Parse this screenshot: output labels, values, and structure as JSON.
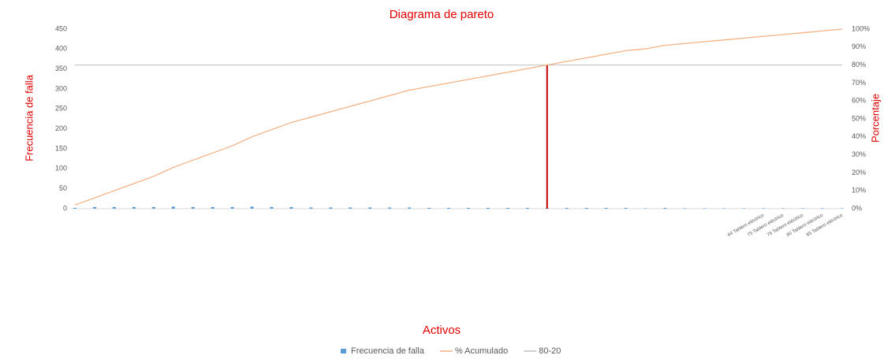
{
  "chart_data": {
    "type": "pareto",
    "title": "Diagrama de pareto",
    "x_label": "Activos",
    "y_label": "Frecuencia de falla",
    "y2_label": "Porcentaje",
    "categories": [
      null,
      null,
      null,
      null,
      null,
      null,
      null,
      null,
      null,
      null,
      null,
      null,
      null,
      null,
      null,
      null,
      null,
      null,
      null,
      null,
      null,
      null,
      null,
      null,
      null,
      null,
      null,
      null,
      null,
      null,
      null,
      null,
      null,
      null,
      null,
      "64 Tablero eléctrico",
      "75 Tablero eléctrico",
      "76 Tablero eléctrico",
      "80 Tablero eléctrico",
      "85 Tablero eléctrico"
    ],
    "series": [
      {
        "name": "Frecuencia de falla",
        "color": "#5b9bd5",
        "values": [
          2,
          4,
          4,
          4,
          4,
          5,
          4,
          4,
          4,
          5,
          4,
          4,
          3,
          3,
          3,
          3,
          3,
          3,
          2,
          2,
          2,
          2,
          2,
          2,
          2,
          2,
          2,
          2,
          2,
          1,
          2,
          1,
          1,
          1,
          1,
          1,
          1,
          1,
          1,
          1
        ]
      },
      {
        "name": "% Acumulado",
        "color": "#f4b183",
        "axis": "y2",
        "values": [
          2,
          6,
          10,
          14,
          18,
          23,
          27,
          31,
          35,
          40,
          44,
          48,
          51,
          54,
          57,
          60,
          63,
          66,
          68,
          70,
          72,
          74,
          76,
          78,
          80,
          82,
          84,
          86,
          88,
          89,
          91,
          92,
          93,
          94,
          95,
          96,
          97,
          98,
          99,
          100
        ]
      },
      {
        "name": "80-20",
        "color": "#bfbfbf",
        "axis": "y2",
        "value": 80,
        "cut_color": "#c00000"
      }
    ],
    "ylim": [
      0,
      450
    ],
    "yticks": [
      0,
      50,
      100,
      150,
      200,
      250,
      300,
      350,
      400,
      450
    ],
    "y2lim": [
      0,
      100
    ],
    "y2ticks": [
      {
        "value": 0,
        "label": "0%"
      },
      {
        "value": 10,
        "label": "10%"
      },
      {
        "value": 20,
        "label": "20%"
      },
      {
        "value": 30,
        "label": "30%"
      },
      {
        "value": 40,
        "label": "40%"
      },
      {
        "value": 50,
        "label": "50%"
      },
      {
        "value": 60,
        "label": "60%"
      },
      {
        "value": 70,
        "label": "70%"
      },
      {
        "value": 80,
        "label": "80%"
      },
      {
        "value": 90,
        "label": "90%"
      },
      {
        "value": 100,
        "label": "100%"
      }
    ],
    "legend": "bottom"
  }
}
